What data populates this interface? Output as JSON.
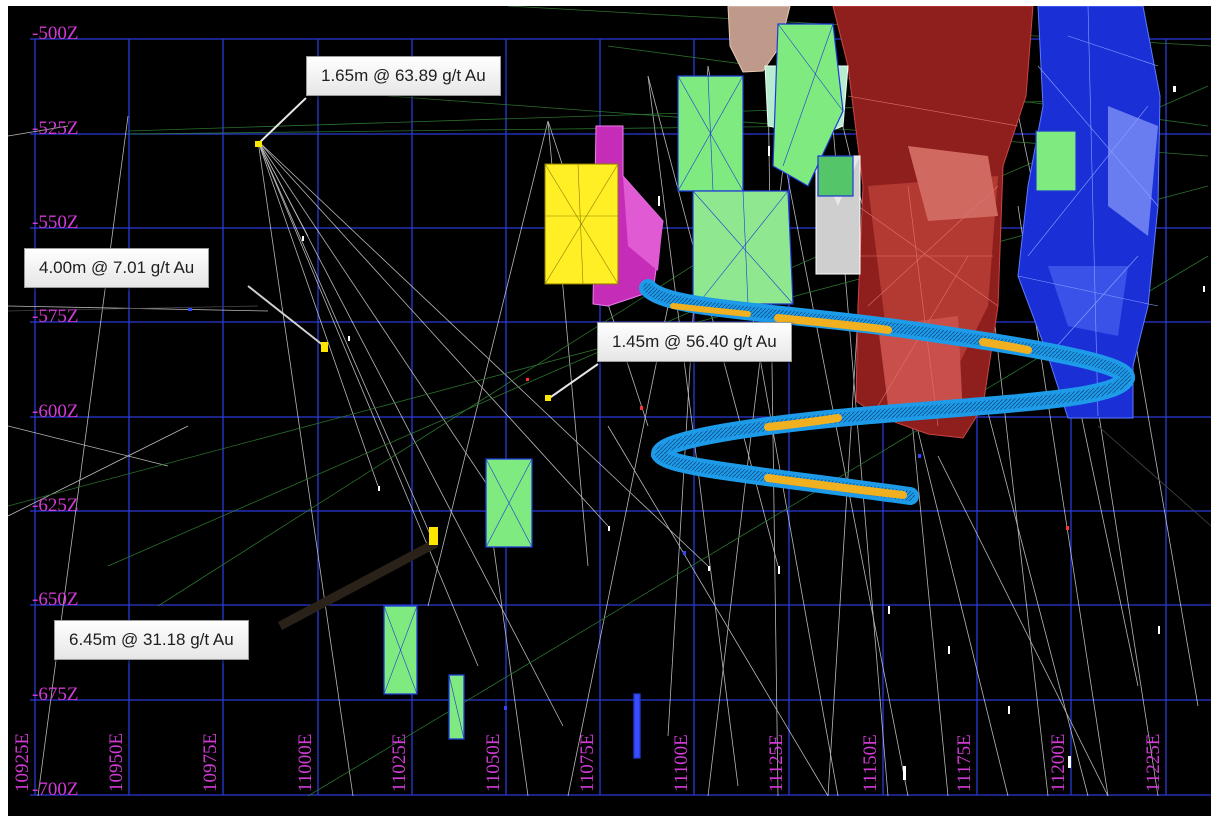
{
  "section": {
    "elevation_labels": [
      "-500Z",
      "-525Z",
      "-550Z",
      "-575Z",
      "-600Z",
      "-625Z",
      "-650Z",
      "-675Z",
      "-700Z"
    ],
    "easting_labels": [
      "10925E",
      "10950E",
      "10975E",
      "11000E",
      "11025E",
      "11050E",
      "11075E",
      "11100E",
      "11125E",
      "11150E",
      "11175E",
      "11200E",
      "11225E"
    ],
    "colors": {
      "background": "#000000",
      "grid": "#2a3bd6",
      "labels": "#d23ad6",
      "intercept": "#ffe600",
      "decline": "#1e9be8",
      "decline_highlight": "#f0b020"
    }
  },
  "callouts": [
    {
      "id": "c1",
      "text": "1.65m @ 63.89 g/t Au"
    },
    {
      "id": "c2",
      "text": "4.00m @ 7.01 g/t Au"
    },
    {
      "id": "c3",
      "text": "1.45m @ 56.40 g/t Au"
    },
    {
      "id": "c4",
      "text": "6.45m @ 31.18 g/t Au"
    }
  ]
}
